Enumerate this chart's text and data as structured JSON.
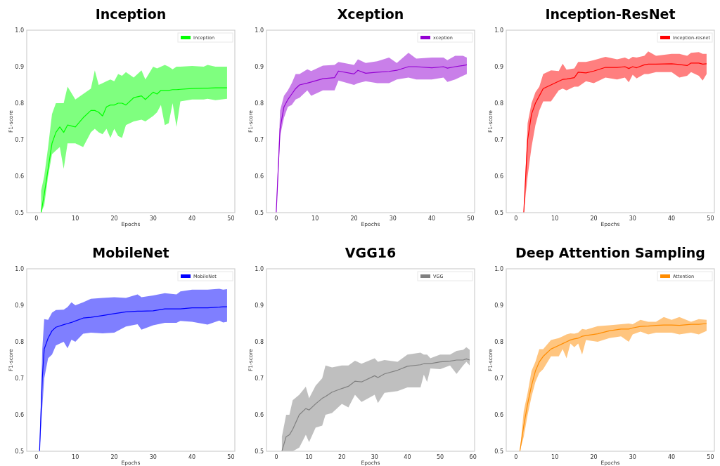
{
  "chart_data": [
    {
      "type": "line",
      "title": "Inception",
      "xlabel": "Epochs",
      "ylabel": "F1-score",
      "xlim": [
        -2.5,
        51
      ],
      "ylim": [
        0.5,
        1.0
      ],
      "xticks": [
        0,
        10,
        20,
        30,
        40,
        50
      ],
      "yticks": [
        {
          "value": 0.5,
          "label": "0.5"
        },
        {
          "value": 0.6,
          "label": "0.6"
        },
        {
          "value": 0.7,
          "label": "0.7"
        },
        {
          "value": 0.8,
          "label": "0.8"
        },
        {
          "value": 0.9,
          "label": "0.9"
        },
        {
          "value": 1.0,
          "label": "1.0"
        }
      ],
      "legend": "top right",
      "grid": false,
      "series": [
        {
          "name": "Inception",
          "color": "#00ff00",
          "x": [
            1.2,
            2,
            3,
            4,
            5,
            6,
            7,
            8,
            10,
            12,
            14,
            15,
            16,
            17,
            18,
            19,
            20,
            21,
            22,
            23,
            25,
            27,
            28,
            30,
            31,
            32,
            33,
            34,
            35,
            36,
            37,
            40,
            43,
            44,
            46,
            49
          ],
          "values": [
            0.5,
            0.55,
            0.62,
            0.69,
            0.72,
            0.735,
            0.72,
            0.74,
            0.735,
            0.76,
            0.78,
            0.78,
            0.775,
            0.765,
            0.79,
            0.795,
            0.795,
            0.8,
            0.8,
            0.795,
            0.815,
            0.82,
            0.81,
            0.83,
            0.825,
            0.835,
            0.835,
            0.835,
            0.837,
            0.837,
            0.838,
            0.84,
            0.841,
            0.841,
            0.842,
            0.842
          ],
          "lower": [
            0.5,
            0.52,
            0.6,
            0.66,
            0.67,
            0.68,
            0.62,
            0.69,
            0.69,
            0.68,
            0.72,
            0.73,
            0.72,
            0.715,
            0.73,
            0.705,
            0.73,
            0.71,
            0.705,
            0.74,
            0.75,
            0.755,
            0.75,
            0.765,
            0.775,
            0.795,
            0.74,
            0.745,
            0.8,
            0.735,
            0.805,
            0.81,
            0.81,
            0.812,
            0.808,
            0.812
          ],
          "upper": [
            0.56,
            0.6,
            0.68,
            0.77,
            0.8,
            0.8,
            0.8,
            0.845,
            0.81,
            0.825,
            0.84,
            0.89,
            0.85,
            0.855,
            0.86,
            0.865,
            0.86,
            0.88,
            0.875,
            0.885,
            0.87,
            0.89,
            0.865,
            0.9,
            0.895,
            0.9,
            0.905,
            0.9,
            0.893,
            0.9,
            0.9,
            0.902,
            0.9,
            0.905,
            0.9,
            0.9
          ]
        }
      ]
    },
    {
      "type": "line",
      "title": "Xception",
      "xlabel": "Epochs",
      "ylabel": "F1-score",
      "xlim": [
        -2.5,
        51
      ],
      "ylim": [
        0.5,
        1.0
      ],
      "xticks": [
        0,
        10,
        20,
        30,
        40,
        50
      ],
      "yticks": [
        {
          "value": 0.5,
          "label": "0.5"
        },
        {
          "value": 0.6,
          "label": "0.6"
        },
        {
          "value": 0.7,
          "label": "0.7"
        },
        {
          "value": 0.8,
          "label": "0.8"
        },
        {
          "value": 0.9,
          "label": "0.9"
        },
        {
          "value": 1.0,
          "label": "1.0"
        }
      ],
      "legend": "top right",
      "grid": false,
      "series": [
        {
          "name": "xception",
          "color": "#9400d3",
          "x": [
            0,
            1,
            2,
            3,
            4,
            5,
            6,
            8,
            9,
            12,
            15,
            16,
            20,
            21,
            23,
            26,
            29,
            31,
            34,
            36,
            40,
            43,
            44,
            46,
            48,
            49
          ],
          "values": [
            0.5,
            0.73,
            0.79,
            0.81,
            0.825,
            0.84,
            0.85,
            0.855,
            0.858,
            0.867,
            0.87,
            0.888,
            0.88,
            0.89,
            0.882,
            0.885,
            0.887,
            0.89,
            0.9,
            0.9,
            0.897,
            0.9,
            0.896,
            0.9,
            0.903,
            0.905
          ],
          "lower": [
            0.5,
            0.71,
            0.76,
            0.79,
            0.795,
            0.81,
            0.815,
            0.835,
            0.82,
            0.835,
            0.835,
            0.862,
            0.85,
            0.855,
            0.86,
            0.855,
            0.855,
            0.865,
            0.87,
            0.865,
            0.865,
            0.87,
            0.858,
            0.865,
            0.875,
            0.88
          ],
          "upper": [
            0.5,
            0.78,
            0.82,
            0.835,
            0.855,
            0.88,
            0.88,
            0.893,
            0.888,
            0.903,
            0.905,
            0.913,
            0.905,
            0.92,
            0.91,
            0.915,
            0.925,
            0.91,
            0.938,
            0.922,
            0.925,
            0.925,
            0.918,
            0.93,
            0.93,
            0.925
          ]
        }
      ]
    },
    {
      "type": "line",
      "title": "Inception-ResNet",
      "xlabel": "Epochs",
      "ylabel": "F1-score",
      "xlim": [
        -2.5,
        51
      ],
      "ylim": [
        0.5,
        1.0
      ],
      "xticks": [
        0,
        10,
        20,
        30,
        40,
        50
      ],
      "yticks": [
        {
          "value": 0.5,
          "label": "0.5"
        },
        {
          "value": 0.6,
          "label": "0.6"
        },
        {
          "value": 0.7,
          "label": "0.7"
        },
        {
          "value": 0.8,
          "label": "0.8"
        },
        {
          "value": 0.9,
          "label": "0.9"
        },
        {
          "value": 1.0,
          "label": "1.0"
        }
      ],
      "legend": "top right",
      "grid": false,
      "series": [
        {
          "name": "Inception-resnet",
          "color": "#ff0000",
          "x": [
            2,
            3,
            4,
            5,
            6,
            7,
            9,
            11,
            12,
            13,
            15,
            16,
            18,
            20,
            23,
            26,
            28,
            29,
            30,
            31,
            33,
            34,
            36,
            40,
            42,
            44,
            45,
            47,
            48,
            49
          ],
          "values": [
            0.5,
            0.7,
            0.77,
            0.8,
            0.82,
            0.84,
            0.85,
            0.86,
            0.865,
            0.866,
            0.87,
            0.885,
            0.883,
            0.888,
            0.898,
            0.898,
            0.9,
            0.895,
            0.9,
            0.897,
            0.905,
            0.907,
            0.907,
            0.908,
            0.906,
            0.903,
            0.91,
            0.91,
            0.907,
            0.908
          ],
          "lower": [
            0.5,
            0.6,
            0.68,
            0.74,
            0.78,
            0.805,
            0.805,
            0.835,
            0.84,
            0.835,
            0.845,
            0.845,
            0.86,
            0.855,
            0.87,
            0.865,
            0.87,
            0.857,
            0.878,
            0.868,
            0.88,
            0.88,
            0.885,
            0.885,
            0.87,
            0.875,
            0.885,
            0.875,
            0.862,
            0.88
          ],
          "upper": [
            0.5,
            0.745,
            0.8,
            0.83,
            0.845,
            0.88,
            0.89,
            0.888,
            0.908,
            0.892,
            0.895,
            0.913,
            0.913,
            0.918,
            0.927,
            0.92,
            0.925,
            0.92,
            0.927,
            0.925,
            0.93,
            0.942,
            0.93,
            0.935,
            0.935,
            0.93,
            0.938,
            0.94,
            0.935,
            0.935
          ]
        }
      ]
    },
    {
      "type": "line",
      "title": "MobileNet",
      "xlabel": "Epochs",
      "ylabel": "F1-score",
      "xlim": [
        -2.5,
        51
      ],
      "ylim": [
        0.5,
        1.0
      ],
      "xticks": [
        0,
        10,
        20,
        30,
        40,
        50
      ],
      "yticks": [
        {
          "value": 0.5,
          "label": "0.5"
        },
        {
          "value": 0.6,
          "label": "0.6"
        },
        {
          "value": 0.7,
          "label": "0.7"
        },
        {
          "value": 0.8,
          "label": "0.8"
        },
        {
          "value": 0.9,
          "label": "0.9"
        },
        {
          "value": 1.0,
          "label": "1.0"
        }
      ],
      "legend": "top right",
      "grid": false,
      "series": [
        {
          "name": "MobileNet",
          "color": "#0000ff",
          "x": [
            0.8,
            1.5,
            2,
            3,
            4,
            5,
            7,
            8,
            9,
            10,
            12,
            14,
            17,
            20,
            23,
            26,
            27,
            30,
            33,
            36,
            37,
            40,
            44,
            47,
            48,
            49
          ],
          "values": [
            0.5,
            0.7,
            0.78,
            0.81,
            0.83,
            0.84,
            0.847,
            0.85,
            0.853,
            0.857,
            0.865,
            0.867,
            0.872,
            0.877,
            0.882,
            0.884,
            0.884,
            0.885,
            0.89,
            0.89,
            0.89,
            0.893,
            0.893,
            0.895,
            0.896,
            0.896
          ],
          "lower": [
            0.5,
            0.62,
            0.7,
            0.755,
            0.765,
            0.79,
            0.8,
            0.782,
            0.806,
            0.8,
            0.822,
            0.825,
            0.823,
            0.825,
            0.842,
            0.848,
            0.833,
            0.845,
            0.852,
            0.852,
            0.857,
            0.855,
            0.847,
            0.858,
            0.853,
            0.855
          ],
          "upper": [
            0.5,
            0.78,
            0.862,
            0.86,
            0.88,
            0.887,
            0.888,
            0.895,
            0.908,
            0.9,
            0.908,
            0.918,
            0.92,
            0.922,
            0.92,
            0.93,
            0.922,
            0.927,
            0.933,
            0.93,
            0.938,
            0.943,
            0.943,
            0.945,
            0.943,
            0.944
          ]
        }
      ]
    },
    {
      "type": "line",
      "title": "VGG16",
      "xlabel": "Epochs",
      "ylabel": "F1-score",
      "xlim": [
        -3,
        60.5
      ],
      "ylim": [
        0.5,
        1.0
      ],
      "xticks": [
        0,
        10,
        20,
        30,
        40,
        50,
        60
      ],
      "yticks": [
        {
          "value": 0.5,
          "label": "0.5"
        },
        {
          "value": 0.6,
          "label": "0.6"
        },
        {
          "value": 0.7,
          "label": "0.7"
        },
        {
          "value": 0.8,
          "label": "0.8"
        },
        {
          "value": 0.9,
          "label": "0.9"
        },
        {
          "value": 1.0,
          "label": "1.0"
        }
      ],
      "legend": "top right",
      "grid": false,
      "series": [
        {
          "name": "VGG",
          "color": "#808080",
          "x": [
            1.7,
            3,
            4,
            5,
            7,
            9,
            10,
            12,
            14,
            15,
            17,
            20,
            22,
            24,
            26,
            30,
            31,
            33,
            37,
            40,
            44,
            45,
            46,
            47,
            50,
            53,
            55,
            57,
            58,
            59
          ],
          "values": [
            0.5,
            0.54,
            0.545,
            0.56,
            0.6,
            0.617,
            0.613,
            0.63,
            0.645,
            0.65,
            0.662,
            0.672,
            0.678,
            0.692,
            0.69,
            0.707,
            0.702,
            0.712,
            0.722,
            0.733,
            0.737,
            0.74,
            0.74,
            0.74,
            0.745,
            0.747,
            0.75,
            0.75,
            0.753,
            0.75
          ],
          "lower": [
            0.5,
            0.5,
            0.5,
            0.5,
            0.51,
            0.545,
            0.525,
            0.565,
            0.57,
            0.6,
            0.605,
            0.63,
            0.62,
            0.655,
            0.635,
            0.655,
            0.632,
            0.66,
            0.665,
            0.675,
            0.675,
            0.71,
            0.69,
            0.727,
            0.725,
            0.735,
            0.712,
            0.735,
            0.745,
            0.735
          ],
          "upper": [
            0.54,
            0.6,
            0.6,
            0.64,
            0.655,
            0.677,
            0.645,
            0.68,
            0.7,
            0.735,
            0.73,
            0.735,
            0.735,
            0.748,
            0.74,
            0.755,
            0.745,
            0.75,
            0.745,
            0.765,
            0.77,
            0.765,
            0.765,
            0.755,
            0.765,
            0.765,
            0.775,
            0.778,
            0.785,
            0.778
          ]
        }
      ]
    },
    {
      "type": "line",
      "title": "Deep Attention Sampling",
      "xlabel": "Epochs",
      "ylabel": "F1-score",
      "xlim": [
        -2.5,
        51
      ],
      "ylim": [
        0.5,
        1.0
      ],
      "xticks": [
        0,
        10,
        20,
        30,
        40,
        50
      ],
      "yticks": [
        {
          "value": 0.5,
          "label": "0.5"
        },
        {
          "value": 0.6,
          "label": "0.6"
        },
        {
          "value": 0.7,
          "label": "0.7"
        },
        {
          "value": 0.8,
          "label": "0.8"
        },
        {
          "value": 0.9,
          "label": "0.9"
        },
        {
          "value": 1.0,
          "label": "1.0"
        }
      ],
      "legend": "top right",
      "grid": false,
      "series": [
        {
          "name": "Attention",
          "color": "#ff8c00",
          "x": [
            1,
            2,
            3,
            4,
            5,
            6,
            7,
            9,
            11,
            12,
            13,
            14,
            15,
            16,
            17,
            18,
            21,
            24,
            27,
            29,
            30,
            32,
            34,
            36,
            38,
            40,
            42,
            45,
            47,
            49
          ],
          "values": [
            0.5,
            0.57,
            0.63,
            0.68,
            0.72,
            0.745,
            0.76,
            0.78,
            0.79,
            0.795,
            0.8,
            0.805,
            0.808,
            0.81,
            0.815,
            0.817,
            0.822,
            0.83,
            0.835,
            0.835,
            0.838,
            0.842,
            0.843,
            0.845,
            0.846,
            0.846,
            0.845,
            0.848,
            0.848,
            0.85
          ],
          "lower": [
            0.5,
            0.54,
            0.6,
            0.65,
            0.69,
            0.715,
            0.725,
            0.76,
            0.76,
            0.78,
            0.755,
            0.795,
            0.785,
            0.795,
            0.765,
            0.805,
            0.8,
            0.81,
            0.815,
            0.8,
            0.82,
            0.828,
            0.82,
            0.825,
            0.825,
            0.825,
            0.82,
            0.825,
            0.82,
            0.83
          ],
          "upper": [
            0.5,
            0.61,
            0.66,
            0.72,
            0.745,
            0.78,
            0.78,
            0.805,
            0.81,
            0.815,
            0.82,
            0.823,
            0.822,
            0.825,
            0.835,
            0.833,
            0.843,
            0.845,
            0.848,
            0.85,
            0.848,
            0.86,
            0.855,
            0.855,
            0.868,
            0.86,
            0.868,
            0.855,
            0.862,
            0.86
          ]
        }
      ]
    }
  ]
}
